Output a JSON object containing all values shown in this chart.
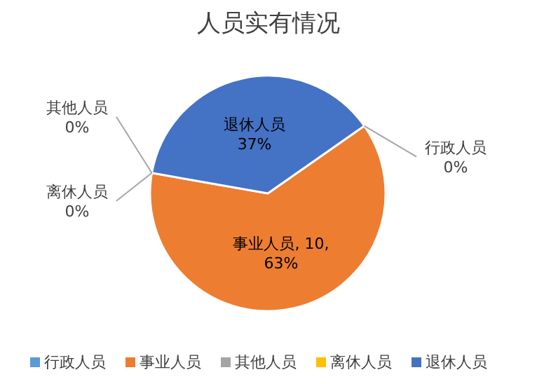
{
  "chart_data": {
    "type": "pie",
    "title": "人员实有情况",
    "categories": [
      "行政人员",
      "事业人员",
      "其他人员",
      "离休人员",
      "退休人员"
    ],
    "values": [
      0,
      10,
      0,
      0,
      6
    ],
    "colors": [
      "#5b9bd5",
      "#ed7d31",
      "#a5a5a5",
      "#ffc000",
      "#4472c4"
    ],
    "value_labels": [
      "行政人员\n0%",
      "事业人员, 10,\n63%",
      "其他人员\n0%",
      "离休人员\n0%",
      "退休人员\n37%"
    ],
    "legend": "bottom"
  }
}
